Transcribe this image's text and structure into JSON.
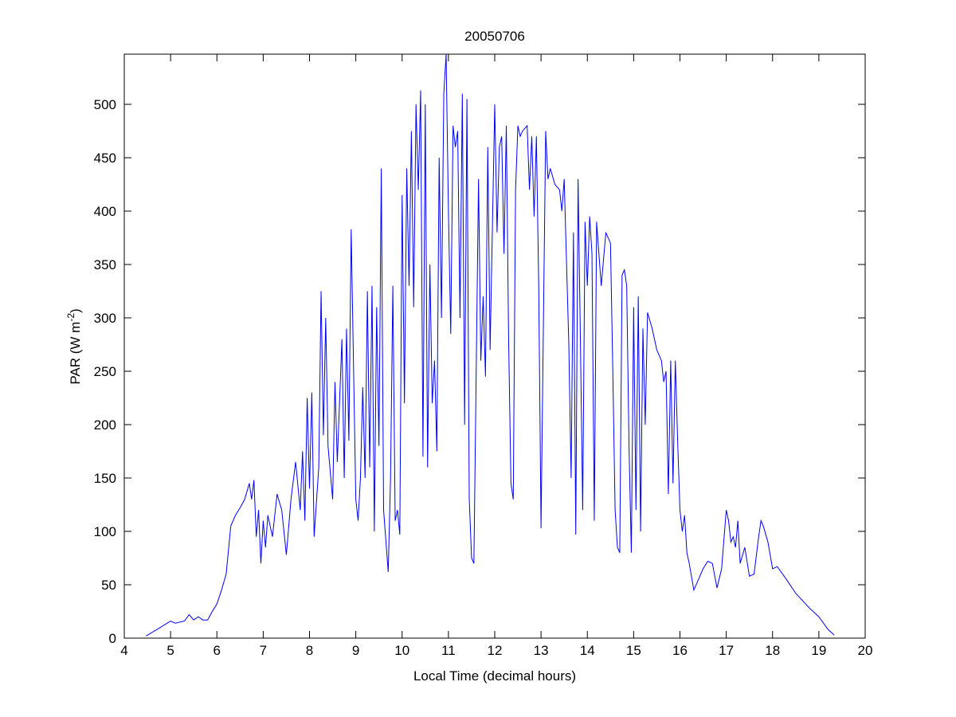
{
  "chart_data": {
    "type": "line",
    "title": "20050706",
    "xlabel": "Local Time (decimal hours)",
    "ylabel": [
      "PAR (W m",
      "-2",
      ")"
    ],
    "color": "#0000ff",
    "xlim": [
      4,
      20
    ],
    "xticks": [
      4,
      5,
      6,
      7,
      8,
      9,
      10,
      11,
      12,
      13,
      14,
      15,
      16,
      17,
      18,
      19,
      20
    ],
    "ylim": [
      0,
      547
    ],
    "yticks": [
      0,
      50,
      100,
      150,
      200,
      250,
      300,
      350,
      400,
      450,
      500
    ],
    "grid": false,
    "x": [
      4.47,
      4.7,
      5.0,
      5.1,
      5.3,
      5.4,
      5.5,
      5.6,
      5.7,
      5.8,
      5.9,
      6.0,
      6.1,
      6.2,
      6.3,
      6.4,
      6.5,
      6.6,
      6.7,
      6.75,
      6.8,
      6.85,
      6.9,
      6.95,
      7.0,
      7.05,
      7.1,
      7.2,
      7.3,
      7.4,
      7.5,
      7.6,
      7.7,
      7.8,
      7.85,
      7.9,
      7.95,
      8.0,
      8.05,
      8.1,
      8.2,
      8.25,
      8.3,
      8.35,
      8.4,
      8.5,
      8.55,
      8.6,
      8.7,
      8.75,
      8.8,
      8.85,
      8.9,
      9.0,
      9.05,
      9.1,
      9.15,
      9.2,
      9.25,
      9.3,
      9.35,
      9.4,
      9.45,
      9.5,
      9.55,
      9.6,
      9.7,
      9.75,
      9.8,
      9.85,
      9.9,
      9.95,
      10.0,
      10.05,
      10.1,
      10.15,
      10.2,
      10.25,
      10.3,
      10.35,
      10.4,
      10.45,
      10.5,
      10.55,
      10.6,
      10.65,
      10.7,
      10.75,
      10.8,
      10.85,
      10.9,
      10.95,
      11.0,
      11.05,
      11.1,
      11.15,
      11.2,
      11.25,
      11.3,
      11.35,
      11.4,
      11.45,
      11.5,
      11.55,
      11.6,
      11.65,
      11.7,
      11.75,
      11.8,
      11.85,
      11.9,
      12.0,
      12.05,
      12.1,
      12.15,
      12.2,
      12.25,
      12.3,
      12.35,
      12.4,
      12.45,
      12.5,
      12.55,
      12.6,
      12.7,
      12.75,
      12.8,
      12.85,
      12.9,
      12.95,
      13.0,
      13.05,
      13.1,
      13.15,
      13.2,
      13.3,
      13.4,
      13.45,
      13.5,
      13.6,
      13.65,
      13.7,
      13.75,
      13.8,
      13.85,
      13.9,
      13.95,
      14.0,
      14.05,
      14.1,
      14.15,
      14.2,
      14.3,
      14.4,
      14.5,
      14.55,
      14.6,
      14.65,
      14.7,
      14.75,
      14.8,
      14.85,
      14.9,
      14.95,
      15.0,
      15.05,
      15.1,
      15.15,
      15.2,
      15.25,
      15.3,
      15.4,
      15.5,
      15.6,
      15.65,
      15.7,
      15.75,
      15.8,
      15.85,
      15.9,
      15.95,
      16.0,
      16.05,
      16.1,
      16.15,
      16.2,
      16.3,
      16.4,
      16.5,
      16.6,
      16.7,
      16.8,
      16.9,
      17.0,
      17.05,
      17.1,
      17.15,
      17.2,
      17.25,
      17.3,
      17.4,
      17.5,
      17.6,
      17.7,
      17.75,
      17.8,
      17.9,
      18.0,
      18.1,
      18.3,
      18.5,
      18.8,
      19.0,
      19.2,
      19.33
    ],
    "values": [
      2,
      8,
      16,
      14,
      16,
      22,
      17,
      20,
      17,
      17,
      25,
      32,
      45,
      60,
      105,
      115,
      122,
      130,
      145,
      130,
      148,
      95,
      120,
      70,
      110,
      85,
      115,
      95,
      135,
      120,
      78,
      130,
      165,
      120,
      175,
      110,
      225,
      140,
      230,
      95,
      160,
      325,
      190,
      300,
      180,
      130,
      240,
      165,
      280,
      150,
      290,
      185,
      383,
      130,
      110,
      150,
      235,
      150,
      325,
      160,
      330,
      100,
      310,
      180,
      440,
      120,
      62,
      150,
      330,
      110,
      120,
      97,
      415,
      220,
      440,
      330,
      475,
      310,
      500,
      420,
      513,
      170,
      500,
      160,
      350,
      220,
      260,
      175,
      450,
      300,
      510,
      547,
      400,
      285,
      480,
      460,
      475,
      300,
      510,
      200,
      505,
      130,
      75,
      70,
      250,
      430,
      260,
      320,
      245,
      460,
      270,
      500,
      380,
      460,
      470,
      360,
      480,
      280,
      145,
      130,
      420,
      480,
      470,
      475,
      480,
      420,
      470,
      395,
      470,
      330,
      103,
      290,
      475,
      430,
      440,
      425,
      420,
      400,
      430,
      275,
      150,
      380,
      97,
      430,
      280,
      120,
      390,
      330,
      395,
      360,
      110,
      390,
      330,
      380,
      370,
      250,
      120,
      85,
      80,
      340,
      345,
      330,
      180,
      80,
      310,
      120,
      320,
      100,
      290,
      200,
      305,
      290,
      270,
      260,
      240,
      250,
      135,
      260,
      145,
      260,
      185,
      120,
      100,
      115,
      80,
      70,
      45,
      55,
      65,
      72,
      70,
      47,
      65,
      120,
      110,
      90,
      95,
      85,
      110,
      70,
      85,
      58,
      60,
      95,
      110,
      105,
      90,
      65,
      67,
      55,
      42,
      28,
      20,
      8,
      3
    ]
  }
}
